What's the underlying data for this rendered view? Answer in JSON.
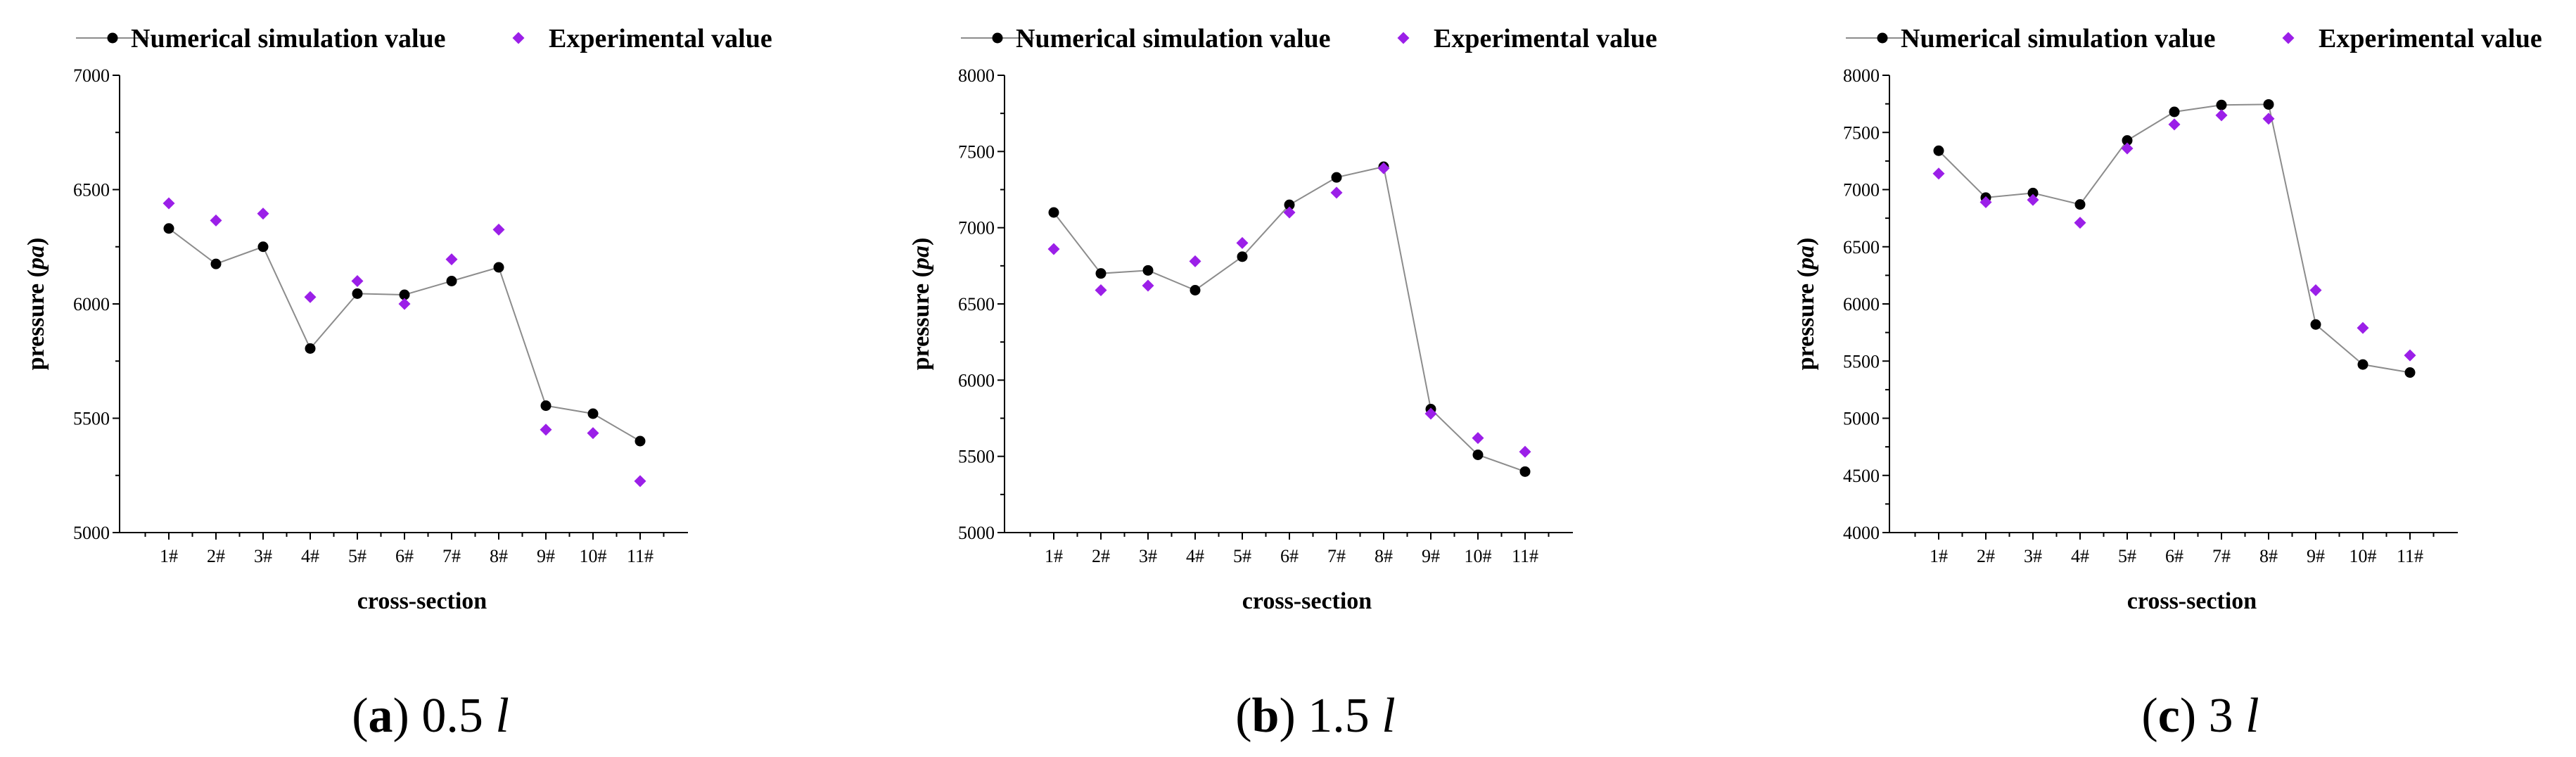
{
  "legend": {
    "sim_label": "Numerical simulation value",
    "exp_label": "Experimental value"
  },
  "colors": {
    "sim_marker": "#000000",
    "sim_line": "#8c8c8c",
    "exp_marker": "#9b1fe8",
    "axis": "#000000"
  },
  "chart_data": [
    {
      "type": "scatter",
      "panel": "a",
      "caption": {
        "letter": "(a)",
        "value": "0.5",
        "unit": "l"
      },
      "categories": [
        "1#",
        "2#",
        "3#",
        "4#",
        "5#",
        "6#",
        "7#",
        "8#",
        "9#",
        "10#",
        "11#"
      ],
      "xlabel": "cross-section",
      "ylabel_prefix": "pressure (",
      "ylabel_unit": "pa",
      "ylabel_suffix": ")",
      "ylim": [
        5000,
        7000
      ],
      "yticks": [
        5000,
        5500,
        6000,
        6500,
        7000
      ],
      "yminor": 250,
      "legend_position": "top",
      "series": [
        {
          "name": "Numerical simulation value",
          "style": "line-marker",
          "values": [
            6330,
            6175,
            6250,
            5805,
            6045,
            6040,
            6100,
            6160,
            5555,
            5520,
            5400
          ]
        },
        {
          "name": "Experimental value",
          "style": "diamond",
          "values": [
            6440,
            6365,
            6395,
            6030,
            6100,
            6000,
            6195,
            6325,
            5450,
            5435,
            5225
          ]
        }
      ]
    },
    {
      "type": "scatter",
      "panel": "b",
      "caption": {
        "letter": "(b)",
        "value": "1.5",
        "unit": "l"
      },
      "categories": [
        "1#",
        "2#",
        "3#",
        "4#",
        "5#",
        "6#",
        "7#",
        "8#",
        "9#",
        "10#",
        "11#"
      ],
      "xlabel": "cross-section",
      "ylabel_prefix": "pressure (",
      "ylabel_unit": "pa",
      "ylabel_suffix": ")",
      "ylim": [
        5000,
        8000
      ],
      "yticks": [
        5000,
        5500,
        6000,
        6500,
        7000,
        7500,
        8000
      ],
      "yminor": 250,
      "legend_position": "top",
      "series": [
        {
          "name": "Numerical simulation value",
          "style": "line-marker",
          "values": [
            7100,
            6700,
            6720,
            6590,
            6810,
            7150,
            7330,
            7400,
            5810,
            5510,
            5400
          ]
        },
        {
          "name": "Experimental value",
          "style": "diamond",
          "values": [
            6860,
            6590,
            6620,
            6780,
            6900,
            7100,
            7230,
            7390,
            5780,
            5620,
            5530
          ]
        }
      ]
    },
    {
      "type": "scatter",
      "panel": "c",
      "caption": {
        "letter": "(c)",
        "value": "3",
        "unit": "l"
      },
      "categories": [
        "1#",
        "2#",
        "3#",
        "4#",
        "5#",
        "6#",
        "7#",
        "8#",
        "9#",
        "10#",
        "11#"
      ],
      "xlabel": "cross-section",
      "ylabel_prefix": "pressure (",
      "ylabel_unit": "pa",
      "ylabel_suffix": ")",
      "ylim": [
        4000,
        8000
      ],
      "yticks": [
        4000,
        4500,
        5000,
        5500,
        6000,
        6500,
        7000,
        7500,
        8000
      ],
      "yminor": 250,
      "legend_position": "top",
      "series": [
        {
          "name": "Numerical simulation value",
          "style": "line-marker",
          "values": [
            7340,
            6930,
            6970,
            6870,
            7430,
            7680,
            7740,
            7745,
            5820,
            5470,
            5400
          ]
        },
        {
          "name": "Experimental value",
          "style": "diamond",
          "values": [
            7140,
            6890,
            6910,
            6710,
            7360,
            7570,
            7650,
            7620,
            6120,
            5790,
            5550
          ]
        }
      ]
    }
  ]
}
